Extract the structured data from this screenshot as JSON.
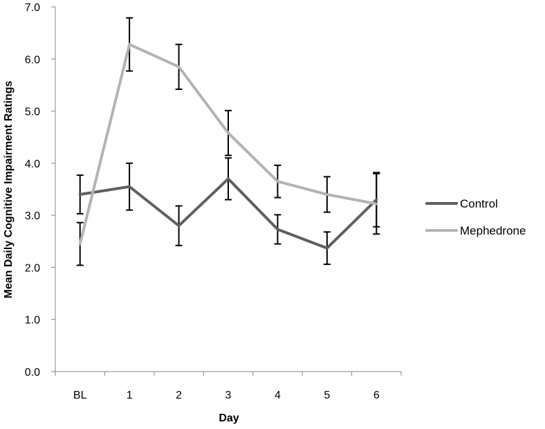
{
  "chart_data": {
    "type": "line",
    "title": "",
    "xlabel": "Day",
    "ylabel": "Mean Daily Cognitive Impairment Ratings",
    "categories": [
      "BL",
      "1",
      "2",
      "3",
      "4",
      "5",
      "6"
    ],
    "ylim": [
      0,
      7
    ],
    "yticks": [
      "0.0",
      "1.0",
      "2.0",
      "3.0",
      "4.0",
      "5.0",
      "6.0",
      "7.0"
    ],
    "grid": false,
    "legend_position": "right",
    "series": [
      {
        "name": "Control",
        "color": "#5f5f5f",
        "values": [
          3.4,
          3.55,
          2.8,
          3.7,
          2.73,
          2.37,
          3.3
        ],
        "error": [
          0.37,
          0.45,
          0.38,
          0.4,
          0.28,
          0.31,
          0.52
        ]
      },
      {
        "name": "Mephedrone",
        "color": "#b3b3b3",
        "values": [
          2.45,
          6.28,
          5.85,
          4.58,
          3.65,
          3.4,
          3.22
        ],
        "error": [
          0.41,
          0.51,
          0.43,
          0.43,
          0.31,
          0.34,
          0.58
        ]
      }
    ]
  }
}
